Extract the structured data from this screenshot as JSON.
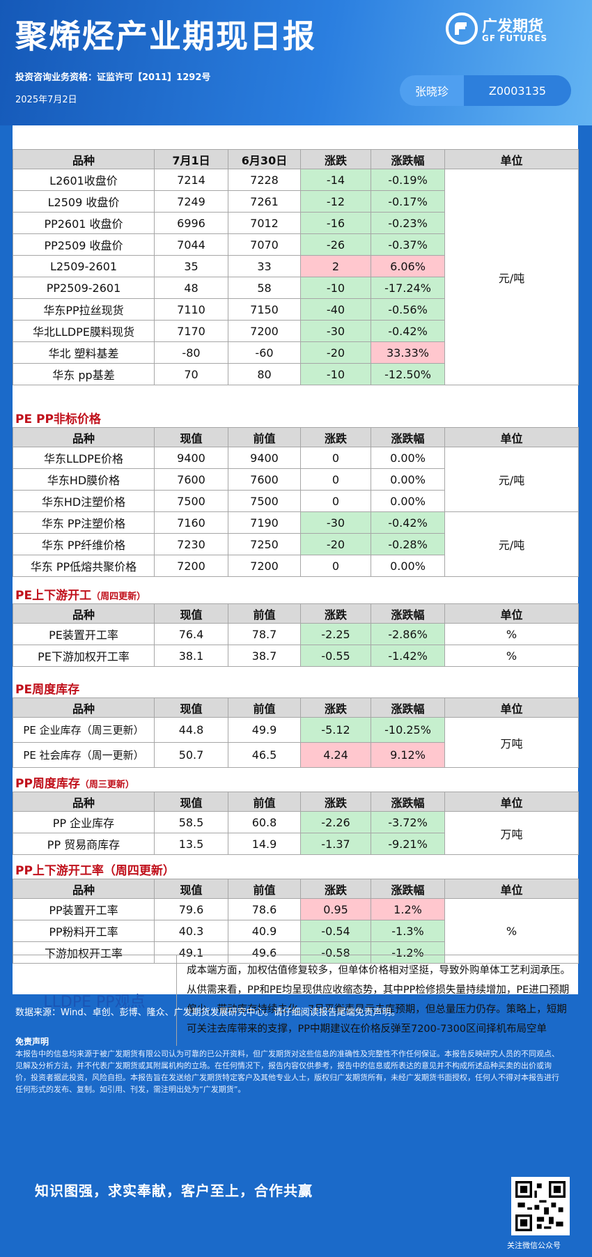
{
  "header": {
    "title": "聚烯烃产业期现日报",
    "qualification": "投资咨询业务资格：证监许可【2011】1292号",
    "date": "2025年7月2日",
    "logo_cn": "广发期货",
    "logo_en": "GF FUTURES",
    "analyst_name": "张晓珍",
    "analyst_cert": "Z0003135"
  },
  "colors": {
    "header_blue": "#1b6ac9",
    "section_red": "#c0101b",
    "down_green": "#c6efce",
    "up_red": "#ffc7ce",
    "header_gray": "#d9d9d9"
  },
  "t1": {
    "headers": [
      "品种",
      "7月1日",
      "6月30日",
      "涨跌",
      "涨跌幅",
      "单位"
    ],
    "unit": "元/吨",
    "rows": [
      [
        "L2601收盘价",
        "7214",
        "7228",
        "-14",
        "-0.19%"
      ],
      [
        "L2509 收盘价",
        "7249",
        "7261",
        "-12",
        "-0.17%"
      ],
      [
        "PP2601 收盘价",
        "6996",
        "7012",
        "-16",
        "-0.23%"
      ],
      [
        "PP2509 收盘价",
        "7044",
        "7070",
        "-26",
        "-0.37%"
      ],
      [
        "L2509-2601",
        "35",
        "33",
        "2",
        "6.06%"
      ],
      [
        "PP2509-2601",
        "48",
        "58",
        "-10",
        "-17.24%"
      ],
      [
        "华东PP拉丝现货",
        "7110",
        "7150",
        "-40",
        "-0.56%"
      ],
      [
        "华北LLDPE膜料现货",
        "7170",
        "7200",
        "-30",
        "-0.42%"
      ],
      [
        "华北 塑料基差",
        "-80",
        "-60",
        "-20",
        "33.33%"
      ],
      [
        "华东 pp基差",
        "70",
        "80",
        "-10",
        "-12.50%"
      ]
    ]
  },
  "t2": {
    "title": "PE PP非标价格",
    "headers": [
      "品种",
      "现值",
      "前值",
      "涨跌",
      "涨跌幅",
      "单位"
    ],
    "unit_a": "元/吨",
    "unit_b": "元/吨",
    "rows": [
      [
        "华东LLDPE价格",
        "9400",
        "9400",
        "0",
        "0.00%"
      ],
      [
        "华东HD膜价格",
        "7600",
        "7600",
        "0",
        "0.00%"
      ],
      [
        "华东HD注塑价格",
        "7500",
        "7500",
        "0",
        "0.00%"
      ],
      [
        "华东 PP注塑价格",
        "7160",
        "7190",
        "-30",
        "-0.42%"
      ],
      [
        "华东 PP纤维价格",
        "7230",
        "7250",
        "-20",
        "-0.28%"
      ],
      [
        "华东 PP低熔共聚价格",
        "7200",
        "7200",
        "0",
        "0.00%"
      ]
    ]
  },
  "t3": {
    "title": "PE上下游开工",
    "note": "（周四更新）",
    "headers": [
      "品种",
      "现值",
      "前值",
      "涨跌",
      "涨跌幅",
      "单位"
    ],
    "rows": [
      [
        "PE装置开工率",
        "76.4",
        "78.7",
        "-2.25",
        "-2.86%",
        "%"
      ],
      [
        "PE下游加权开工率",
        "38.1",
        "38.7",
        "-0.55",
        "-1.42%",
        "%"
      ]
    ]
  },
  "t4": {
    "title": "PE周度库存",
    "headers": [
      "品种",
      "现值",
      "前值",
      "涨跌",
      "涨跌幅",
      "单位"
    ],
    "unit": "万吨",
    "rows": [
      [
        "PE 企业库存（周三更新）",
        "44.8",
        "49.9",
        "-5.12",
        "-10.25%"
      ],
      [
        "PE 社会库存（周一更新）",
        "50.7",
        "46.5",
        "4.24",
        "9.12%"
      ]
    ]
  },
  "t5": {
    "title": "PP周度库存",
    "note": "（周三更新）",
    "headers": [
      "品种",
      "现值",
      "前值",
      "涨跌",
      "涨跌幅",
      "单位"
    ],
    "unit": "万吨",
    "rows": [
      [
        "PP 企业库存",
        "58.5",
        "60.8",
        "-2.26",
        "-3.72%"
      ],
      [
        "PP 贸易商库存",
        "13.5",
        "14.9",
        "-1.37",
        "-9.21%"
      ]
    ]
  },
  "t6": {
    "title": "PP上下游开工率",
    "note": "（周四更新）",
    "headers": [
      "品种",
      "现值",
      "前值",
      "涨跌",
      "涨跌幅",
      "单位"
    ],
    "unit": "%",
    "rows": [
      [
        "PP装置开工率",
        "79.6",
        "78.6",
        "0.95",
        "1.2%"
      ],
      [
        "PP粉料开工率",
        "40.3",
        "40.9",
        "-0.54",
        "-1.3%"
      ],
      [
        "下游加权开工率",
        "49.1",
        "49.6",
        "-0.58",
        "-1.2%"
      ]
    ]
  },
  "view": {
    "label": "LLDPE  PP观点",
    "text": "成本端方面，加权估值修复较多，但单体价格相对坚挺，导致外购单体工艺利润承压。从供需来看，PP和PE均呈现供应收缩态势，其中PP检修损失量持续增加，PE进口预期偏少，带动库存持续去化。7月平衡表显示去库预期，但总量压力仍存。策略上，短期可关注去库带来的支撑，PP中期建议在价格反弹至7200-7300区间择机布局空单"
  },
  "footer": {
    "source": "数据来源：Wind、卓创、彭博、隆众、广发期货发展研究中心。请仔细阅读报告尾端免责声明。",
    "disclaimer_title": "免责声明",
    "disclaimer": "本报告中的信息均来源于被广发期货有限公司认为可靠的已公开资料，但广发期货对这些信息的准确性及完整性不作任何保证。本报告反映研究人员的不同观点、见解及分析方法，并不代表广发期货或其附属机构的立场。在任何情况下，报告内容仅供参考，报告中的信息或所表达的意见并不构成所述品种买卖的出价或询价，投资者据此投资，风险自担。本报告旨在发送给广发期货特定客户及其他专业人士，版权归广发期货所有，未经广发期货书面授权，任何人不得对本报告进行任何形式的发布、复制。如引用、刊发，需注明出处为“广发期货”。",
    "slogan": "知识图强，求实奉献，客户至上，合作共赢",
    "qr_label": "关注微信公众号"
  }
}
